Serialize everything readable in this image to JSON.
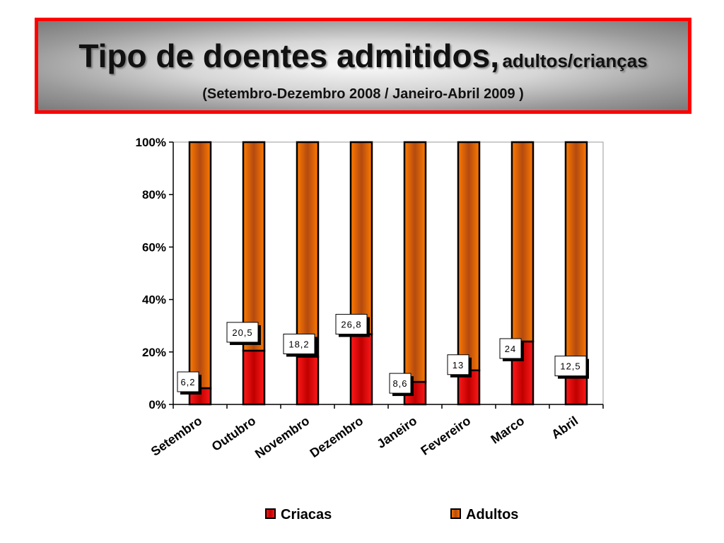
{
  "header": {
    "title_main": "Tipo de doentes admitidos,",
    "title_small": "adultos/crianças",
    "subtitle": "(Setembro-Dezembro 2008 / Janeiro-Abril 2009 )"
  },
  "chart_data": {
    "type": "bar",
    "stacked": true,
    "percent_stacked": true,
    "categories": [
      "Setembro",
      "Outubro",
      "Novembro",
      "Dezembro",
      "Janeiro",
      "Fevereiro",
      "Marco",
      "Abril"
    ],
    "series": [
      {
        "name": "Criacas",
        "values": [
          6.2,
          20.5,
          18.2,
          26.8,
          8.6,
          13,
          24,
          12.5
        ],
        "color": "#e31b1b"
      },
      {
        "name": "Adultos",
        "values": [
          93.8,
          79.5,
          81.8,
          73.2,
          91.4,
          87,
          76,
          87.5
        ],
        "color": "#f06a00"
      }
    ],
    "data_labels": [
      "6,2",
      "20,5",
      "18,2",
      "26,8",
      "8,6",
      "13",
      "24",
      "12,5"
    ],
    "y_ticks": [
      "0%",
      "20%",
      "40%",
      "60%",
      "80%",
      "100%"
    ],
    "ylim": [
      0,
      100
    ],
    "grid": false,
    "legend_position": "bottom"
  }
}
